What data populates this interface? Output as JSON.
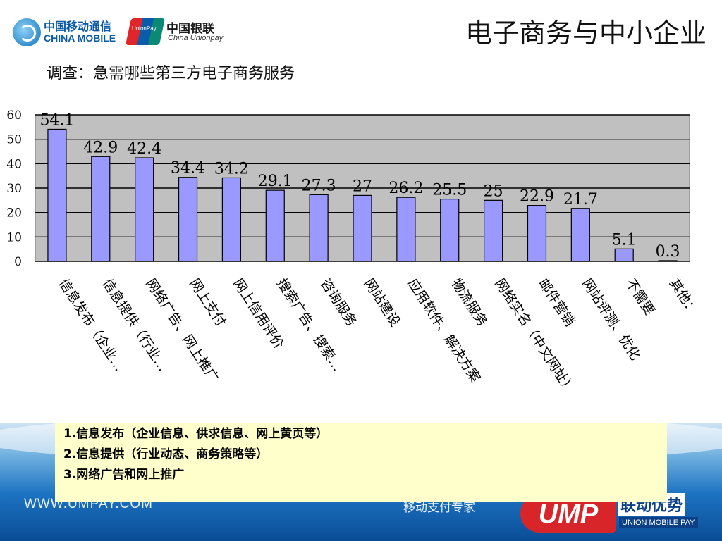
{
  "slide": {
    "title": "电子商务与中小企业",
    "subtitle": "调查：急需哪些第三方电子商务服务"
  },
  "logos": {
    "china_mobile_cn": "中国移动通信",
    "china_mobile_en": "CHINA MOBILE",
    "unionpay_mark": "UnionPay",
    "unionpay_cn": "中国银联",
    "unionpay_en": "China Unionpay",
    "ump_mark": "UMP",
    "ump_cn": "联动优势",
    "ump_en": "UNION MOBILE PAY"
  },
  "footer": {
    "url": "WWW.UMPAY.COM",
    "slogan": "移动支付专家"
  },
  "notes": [
    "1.信息发布（企业信息、供求信息、网上黄页等）",
    "2.信息提供（行业动态、商务策略等）",
    "3.网络广告和网上推广"
  ],
  "colors": {
    "bar": "#9999ff",
    "plot_background": "#c0c0c0",
    "note_background": "#ffffcc"
  },
  "chart_data": {
    "type": "bar",
    "categories": [
      "信息发布（企业…",
      "信息提供（行业…",
      "网络广告、网上推广",
      "网上支付",
      "网上信用评价",
      "搜索广告、搜索…",
      "咨询服务",
      "网站建设",
      "应用软件、解决方案",
      "物流服务",
      "网络实名（中文网址）",
      "邮件营销",
      "网站评测、优化",
      "不需要",
      "其他："
    ],
    "values": [
      54.1,
      42.9,
      42.4,
      34.4,
      34.2,
      29.1,
      27.3,
      27,
      26.2,
      25.5,
      25,
      22.9,
      21.7,
      5.1,
      0.3
    ],
    "data_labels": [
      "54.1",
      "42.9",
      "42.4",
      "34.4",
      "34.2",
      "29.1",
      "27.3",
      "27",
      "26.2",
      "25.5",
      "25",
      "22.9",
      "21.7",
      "5.1",
      "0.3"
    ],
    "yticks": [
      "0",
      "10",
      "20",
      "30",
      "40",
      "50",
      "60"
    ],
    "ylim": [
      0,
      60
    ],
    "grid": true,
    "legend": "none",
    "title": "",
    "xlabel": "",
    "ylabel": ""
  }
}
